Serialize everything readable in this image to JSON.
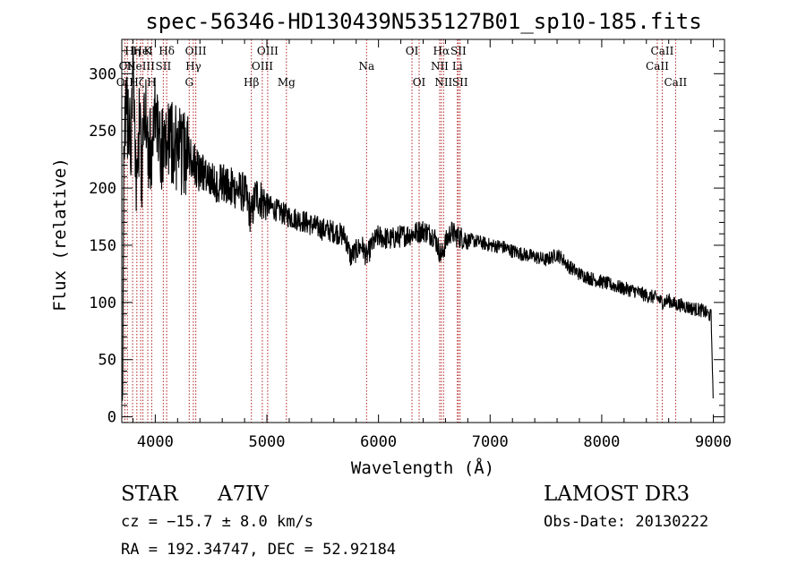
{
  "chart_data": {
    "type": "line",
    "title": "spec-56346-HD130439N535127B01_sp10-185.fits",
    "xlabel": "Wavelength (Å)",
    "ylabel": "Flux (relative)",
    "xlim": [
      3700,
      9100
    ],
    "ylim": [
      -5,
      330
    ],
    "xticks": [
      {
        "value": 4000,
        "label": "4000"
      },
      {
        "value": 5000,
        "label": "5000"
      },
      {
        "value": 6000,
        "label": "6000"
      },
      {
        "value": 7000,
        "label": "7000"
      },
      {
        "value": 8000,
        "label": "8000"
      },
      {
        "value": 9000,
        "label": "9000"
      }
    ],
    "yticks": [
      {
        "value": 0,
        "label": "0"
      },
      {
        "value": 50,
        "label": "50"
      },
      {
        "value": 100,
        "label": "100"
      },
      {
        "value": 150,
        "label": "150"
      },
      {
        "value": 200,
        "label": "200"
      },
      {
        "value": 250,
        "label": "250"
      },
      {
        "value": 300,
        "label": "300"
      }
    ],
    "series": [
      {
        "name": "flux",
        "color": "#000000",
        "x": [
          3700,
          3720,
          3740,
          3760,
          3780,
          3800,
          3820,
          3840,
          3860,
          3880,
          3900,
          3930,
          3970,
          4000,
          4050,
          4100,
          4150,
          4200,
          4250,
          4300,
          4340,
          4400,
          4450,
          4500,
          4600,
          4700,
          4800,
          4861,
          4900,
          5000,
          5100,
          5200,
          5300,
          5400,
          5500,
          5600,
          5700,
          5750,
          5800,
          5850,
          5893,
          5950,
          6000,
          6100,
          6200,
          6300,
          6400,
          6500,
          6563,
          6600,
          6650,
          6700,
          6800,
          6900,
          7000,
          7100,
          7200,
          7300,
          7400,
          7500,
          7600,
          7650,
          7700,
          7800,
          7900,
          8000,
          8100,
          8200,
          8300,
          8400,
          8500,
          8542,
          8600,
          8662,
          8700,
          8800,
          8900,
          8980,
          8995,
          9000
        ],
        "y": [
          5,
          230,
          270,
          250,
          240,
          300,
          220,
          210,
          260,
          200,
          280,
          240,
          230,
          265,
          230,
          250,
          240,
          235,
          230,
          230,
          225,
          210,
          215,
          205,
          205,
          200,
          196,
          175,
          195,
          185,
          180,
          175,
          172,
          168,
          164,
          162,
          158,
          140,
          145,
          150,
          140,
          152,
          158,
          155,
          158,
          160,
          163,
          158,
          140,
          152,
          162,
          158,
          155,
          153,
          150,
          149,
          145,
          142,
          140,
          137,
          142,
          138,
          132,
          125,
          121,
          118,
          115,
          112,
          110,
          106,
          104,
          100,
          102,
          98,
          98,
          95,
          93,
          88,
          30,
          5
        ]
      }
    ],
    "lines": [
      {
        "wavelength": 3727,
        "label": "OII",
        "row": 3
      },
      {
        "wavelength": 3750,
        "label": "OII",
        "row": 2
      },
      {
        "wavelength": 3797,
        "label": "Hη",
        "row": 1
      },
      {
        "wavelength": 3835,
        "label": "Hζ",
        "row": 3
      },
      {
        "wavelength": 3869,
        "label": "NeIII",
        "row": 2
      },
      {
        "wavelength": 3889,
        "label": "HeI",
        "row": 1
      },
      {
        "wavelength": 3933,
        "label": "K",
        "row": 1
      },
      {
        "wavelength": 3968,
        "label": "H",
        "row": 3
      },
      {
        "wavelength": 4072,
        "label": "SII",
        "row": 2
      },
      {
        "wavelength": 4102,
        "label": "Hδ",
        "row": 1
      },
      {
        "wavelength": 4304,
        "label": "G",
        "row": 3
      },
      {
        "wavelength": 4341,
        "label": "Hγ",
        "row": 2
      },
      {
        "wavelength": 4363,
        "label": "OIII",
        "row": 1
      },
      {
        "wavelength": 4861,
        "label": "Hβ",
        "row": 3
      },
      {
        "wavelength": 4959,
        "label": "OIII",
        "row": 2
      },
      {
        "wavelength": 5007,
        "label": "OIII",
        "row": 1
      },
      {
        "wavelength": 5175,
        "label": "Mg",
        "row": 3
      },
      {
        "wavelength": 5893,
        "label": "Na",
        "row": 2
      },
      {
        "wavelength": 6300,
        "label": "OI",
        "row": 1
      },
      {
        "wavelength": 6364,
        "label": "OI",
        "row": 3
      },
      {
        "wavelength": 6548,
        "label": "NII",
        "row": 2
      },
      {
        "wavelength": 6563,
        "label": "Hα",
        "row": 1
      },
      {
        "wavelength": 6583,
        "label": "NII",
        "row": 3
      },
      {
        "wavelength": 6707,
        "label": "Li",
        "row": 2
      },
      {
        "wavelength": 6716,
        "label": "SII",
        "row": 1
      },
      {
        "wavelength": 6731,
        "label": "SII",
        "row": 3
      },
      {
        "wavelength": 8498,
        "label": "CaII",
        "row": 2
      },
      {
        "wavelength": 8542,
        "label": "CaII",
        "row": 1
      },
      {
        "wavelength": 8662,
        "label": "CaII",
        "row": 3
      }
    ],
    "line_color": "#b22222",
    "grid": false,
    "legend": "none"
  },
  "info": {
    "object_class": "STAR",
    "subclass": "A7IV",
    "survey": "LAMOST DR3",
    "redshift_text": "cz = −15.7 ± 8.0 km/s",
    "obs_date": "Obs-Date: 20130222",
    "coords_text": "RA = 192.34747, DEC =  52.92184"
  }
}
